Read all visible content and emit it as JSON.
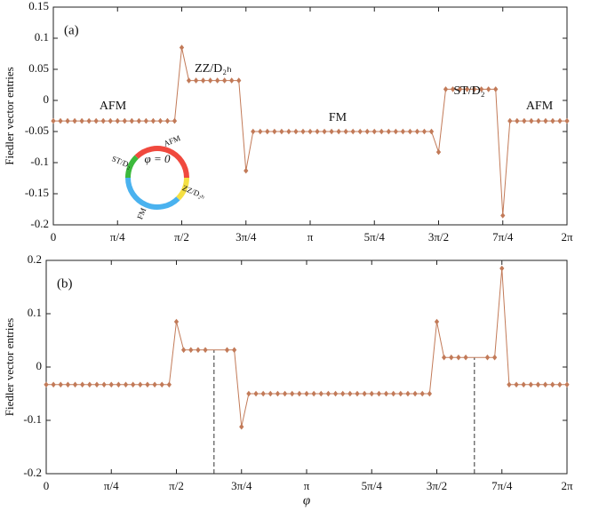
{
  "chart_data": [
    {
      "type": "line",
      "panel_label": "(a)",
      "ylabel": "Fiedler vector entries",
      "color": "#c27a58",
      "xlim": [
        0,
        360
      ],
      "ylim": [
        -0.2,
        0.15
      ],
      "xticks": [
        {
          "value": 0,
          "label": "0"
        },
        {
          "value": 45,
          "label": "π/4"
        },
        {
          "value": 90,
          "label": "π/2"
        },
        {
          "value": 135,
          "label": "3π/4"
        },
        {
          "value": 180,
          "label": "π"
        },
        {
          "value": 225,
          "label": "5π/4"
        },
        {
          "value": 270,
          "label": "3π/2"
        },
        {
          "value": 315,
          "label": "7π/4"
        },
        {
          "value": 360,
          "label": "2π"
        }
      ],
      "yticks": [
        -0.2,
        -0.15,
        -0.1,
        -0.05,
        0,
        0.05,
        0.1,
        0.15
      ],
      "x": [
        0,
        5,
        10,
        15,
        20,
        25,
        30,
        35,
        40,
        45,
        50,
        55,
        60,
        65,
        70,
        75,
        80,
        85,
        90,
        95,
        100,
        105,
        110,
        115,
        120,
        125,
        130,
        135,
        140,
        145,
        150,
        155,
        160,
        165,
        170,
        175,
        180,
        185,
        190,
        195,
        200,
        205,
        210,
        215,
        220,
        225,
        230,
        235,
        240,
        245,
        250,
        255,
        260,
        265,
        270,
        275,
        280,
        285,
        290,
        295,
        300,
        305,
        310,
        315,
        320,
        325,
        330,
        335,
        340,
        345,
        350,
        355,
        360
      ],
      "values": [
        -0.033,
        -0.033,
        -0.033,
        -0.033,
        -0.033,
        -0.033,
        -0.033,
        -0.033,
        -0.033,
        -0.033,
        -0.033,
        -0.033,
        -0.033,
        -0.033,
        -0.033,
        -0.033,
        -0.033,
        -0.033,
        0.085,
        0.032,
        0.032,
        0.032,
        0.032,
        0.032,
        0.032,
        0.032,
        0.032,
        -0.113,
        -0.05,
        -0.05,
        -0.05,
        -0.05,
        -0.05,
        -0.05,
        -0.05,
        -0.05,
        -0.05,
        -0.05,
        -0.05,
        -0.05,
        -0.05,
        -0.05,
        -0.05,
        -0.05,
        -0.05,
        -0.05,
        -0.05,
        -0.05,
        -0.05,
        -0.05,
        -0.05,
        -0.05,
        -0.05,
        -0.05,
        -0.083,
        0.018,
        0.018,
        0.018,
        0.018,
        0.018,
        0.018,
        0.018,
        0.018,
        -0.185,
        -0.033,
        -0.033,
        -0.033,
        -0.033,
        -0.033,
        -0.033,
        -0.033,
        -0.033,
        -0.033
      ],
      "annotations": [
        "AFM",
        "ZZ/D₂ₕ",
        "FM",
        "ST/D₂",
        "AFM"
      ],
      "inset": {
        "label": "φ = 0",
        "arcs": [
          {
            "name": "AFM",
            "color": "#f0493e",
            "from": -45,
            "to": 90
          },
          {
            "name": "ZZ/D₂ₕ",
            "color": "#f5e043",
            "from": 90,
            "to": 135
          },
          {
            "name": "FM",
            "color": "#4ab2ef",
            "from": 135,
            "to": 270
          },
          {
            "name": "ST/D₂",
            "color": "#3cb93c",
            "from": 270,
            "to": 315
          }
        ]
      }
    },
    {
      "type": "line",
      "panel_label": "(b)",
      "ylabel": "Fiedler vector entries",
      "xlabel": "φ",
      "color": "#c27a58",
      "xlim": [
        0,
        360
      ],
      "ylim": [
        -0.2,
        0.2
      ],
      "xticks": [
        {
          "value": 0,
          "label": "0"
        },
        {
          "value": 45,
          "label": "π/4"
        },
        {
          "value": 90,
          "label": "π/2"
        },
        {
          "value": 135,
          "label": "3π/4"
        },
        {
          "value": 180,
          "label": "π"
        },
        {
          "value": 225,
          "label": "5π/4"
        },
        {
          "value": 270,
          "label": "3π/2"
        },
        {
          "value": 315,
          "label": "7π/4"
        },
        {
          "value": 360,
          "label": "2π"
        }
      ],
      "yticks": [
        -0.2,
        -0.1,
        0,
        0.1,
        0.2
      ],
      "x": [
        0,
        5,
        10,
        15,
        20,
        25,
        30,
        35,
        40,
        45,
        50,
        55,
        60,
        65,
        70,
        75,
        80,
        85,
        90,
        95,
        100,
        105,
        110,
        125,
        130,
        135,
        140,
        145,
        150,
        155,
        160,
        165,
        170,
        175,
        180,
        185,
        190,
        195,
        200,
        205,
        210,
        215,
        220,
        225,
        230,
        235,
        240,
        245,
        250,
        255,
        260,
        265,
        270,
        275,
        280,
        285,
        290,
        305,
        310,
        315,
        320,
        325,
        330,
        335,
        340,
        345,
        350,
        355,
        360
      ],
      "values": [
        -0.033,
        -0.033,
        -0.033,
        -0.033,
        -0.033,
        -0.033,
        -0.033,
        -0.033,
        -0.033,
        -0.033,
        -0.033,
        -0.033,
        -0.033,
        -0.033,
        -0.033,
        -0.033,
        -0.033,
        -0.033,
        0.085,
        0.032,
        0.032,
        0.032,
        0.032,
        0.032,
        0.032,
        -0.112,
        -0.05,
        -0.05,
        -0.05,
        -0.05,
        -0.05,
        -0.05,
        -0.05,
        -0.05,
        -0.05,
        -0.05,
        -0.05,
        -0.05,
        -0.05,
        -0.05,
        -0.05,
        -0.05,
        -0.05,
        -0.05,
        -0.05,
        -0.05,
        -0.05,
        -0.05,
        -0.05,
        -0.05,
        -0.05,
        -0.05,
        0.085,
        0.018,
        0.018,
        0.018,
        0.018,
        0.018,
        0.018,
        0.185,
        -0.033,
        -0.033,
        -0.033,
        -0.033,
        -0.033,
        -0.033,
        -0.033,
        -0.033,
        -0.033
      ],
      "vlines": [
        {
          "x": 116,
          "ymax": 0.032
        },
        {
          "x": 296,
          "ymax": 0.018
        }
      ]
    }
  ]
}
